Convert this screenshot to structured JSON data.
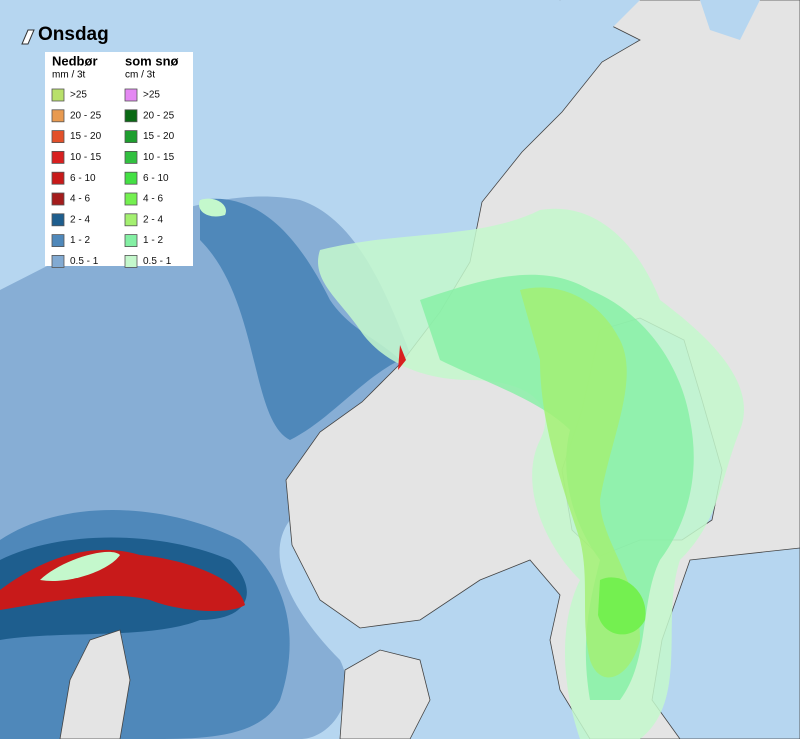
{
  "title": "Onsdag",
  "legend": {
    "rain": {
      "heading": "Nedbør",
      "unit": "mm / 3t",
      "items": [
        {
          "label": ">25",
          "color": "#b8e06a"
        },
        {
          "label": "20 - 25",
          "color": "#e89a50"
        },
        {
          "label": "15 - 20",
          "color": "#e2502a"
        },
        {
          "label": "10 - 15",
          "color": "#d82020"
        },
        {
          "label": "6 - 10",
          "color": "#c81a1a"
        },
        {
          "label": "4 - 6",
          "color": "#a41c1c"
        },
        {
          "label": "2 - 4",
          "color": "#1e5e8e"
        },
        {
          "label": "1 - 2",
          "color": "#4f88ba"
        },
        {
          "label": "0.5 - 1",
          "color": "#82aad2"
        }
      ]
    },
    "snow": {
      "heading": "som snø",
      "unit": "cm / 3t",
      "items": [
        {
          "label": ">25",
          "color": "#e488f2"
        },
        {
          "label": "20 - 25",
          "color": "#0a6a14"
        },
        {
          "label": "15 - 20",
          "color": "#1e9e2e"
        },
        {
          "label": "10 - 15",
          "color": "#32c040"
        },
        {
          "label": "6 - 10",
          "color": "#44e044"
        },
        {
          "label": "4 - 6",
          "color": "#74f050"
        },
        {
          "label": "2 - 4",
          "color": "#a4f070"
        },
        {
          "label": "1 - 2",
          "color": "#84f0a4"
        },
        {
          "label": "0.5 - 1",
          "color": "#c4f8cc"
        }
      ]
    }
  }
}
